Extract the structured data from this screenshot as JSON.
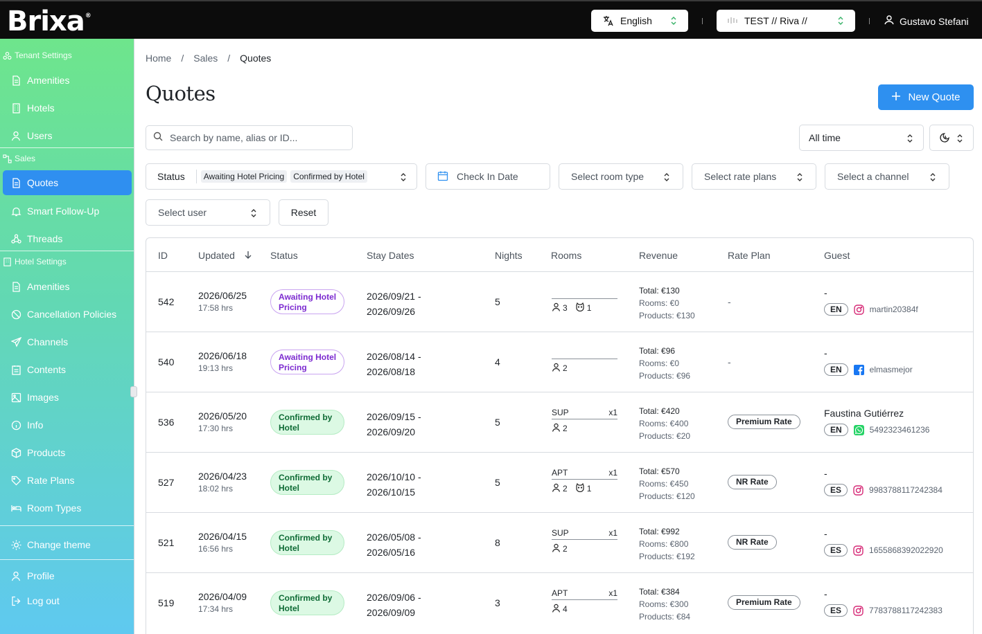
{
  "brand": {
    "logo": "Brixa",
    "reg": "®"
  },
  "topbar": {
    "language": "English",
    "tenant": "TEST // Riva //",
    "user": "Gustavo Stefani"
  },
  "sidebar": {
    "tenant_section": "Tenant Settings",
    "tenant_items": [
      "Amenities",
      "Hotels",
      "Users"
    ],
    "sales_section": "Sales",
    "sales_items": [
      "Quotes",
      "Smart Follow-Up",
      "Threads"
    ],
    "hotel_section": "Hotel Settings",
    "hotel_items": [
      "Amenities",
      "Cancellation Policies",
      "Channels",
      "Contents",
      "Images",
      "Info",
      "Products",
      "Rate Plans",
      "Room Types"
    ],
    "change_theme": "Change theme",
    "profile": "Profile",
    "logout": "Log out"
  },
  "breadcrumb": {
    "home": "Home",
    "sales": "Sales",
    "current": "Quotes",
    "sep": "/"
  },
  "page": {
    "title": "Quotes",
    "new_button": "New Quote"
  },
  "filters": {
    "search_placeholder": "Search by name, alias or ID...",
    "time": "All time",
    "status_label": "Status",
    "status_tags": [
      "Awaiting Hotel Pricing",
      "Confirmed by Hotel"
    ],
    "checkin": "Check In Date",
    "room_type": "Select room type",
    "rate_plans": "Select rate plans",
    "channel": "Select a channel",
    "user": "Select user",
    "reset": "Reset"
  },
  "table": {
    "headers": {
      "id": "ID",
      "updated": "Updated",
      "status": "Status",
      "stay": "Stay Dates",
      "nights": "Nights",
      "rooms": "Rooms",
      "revenue": "Revenue",
      "rate": "Rate Plan",
      "guest": "Guest"
    },
    "rows": [
      {
        "id": "542",
        "date": "2026/06/25",
        "time": "17:58 hrs",
        "status_l1": "Awaiting Hotel",
        "status_l2": "Pricing",
        "status_type": "awaiting",
        "stay1": "2026/09/21 -",
        "stay2": "2026/09/26",
        "nights": "5",
        "room_type": "",
        "room_qty": "",
        "adults": "3",
        "pets": "1",
        "total": "Total: €130",
        "rooms_rev": "Rooms: €0",
        "products_rev": "Products: €130",
        "rate": "-",
        "guest_name": "-",
        "lang": "EN",
        "channel": "instagram",
        "handle": "martin20384f"
      },
      {
        "id": "540",
        "date": "2026/06/18",
        "time": "19:13 hrs",
        "status_l1": "Awaiting Hotel",
        "status_l2": "Pricing",
        "status_type": "awaiting",
        "stay1": "2026/08/14 -",
        "stay2": "2026/08/18",
        "nights": "4",
        "room_type": "",
        "room_qty": "",
        "adults": "2",
        "pets": "",
        "total": "Total: €96",
        "rooms_rev": "Rooms: €0",
        "products_rev": "Products: €96",
        "rate": "-",
        "guest_name": "-",
        "lang": "EN",
        "channel": "facebook",
        "handle": "elmasmejor"
      },
      {
        "id": "536",
        "date": "2026/05/20",
        "time": "17:30 hrs",
        "status_l1": "Confirmed by",
        "status_l2": "Hotel",
        "status_type": "confirmed",
        "stay1": "2026/09/15 -",
        "stay2": "2026/09/20",
        "nights": "5",
        "room_type": "SUP",
        "room_qty": "x1",
        "adults": "2",
        "pets": "",
        "total": "Total: €420",
        "rooms_rev": "Rooms: €400",
        "products_rev": "Products: €20",
        "rate": "Premium Rate",
        "guest_name": "Faustina Gutiérrez",
        "lang": "EN",
        "channel": "whatsapp",
        "handle": "5492323461236"
      },
      {
        "id": "527",
        "date": "2026/04/23",
        "time": "18:02 hrs",
        "status_l1": "Confirmed by",
        "status_l2": "Hotel",
        "status_type": "confirmed",
        "stay1": "2026/10/10 -",
        "stay2": "2026/10/15",
        "nights": "5",
        "room_type": "APT",
        "room_qty": "x1",
        "adults": "2",
        "pets": "1",
        "total": "Total: €570",
        "rooms_rev": "Rooms: €450",
        "products_rev": "Products: €120",
        "rate": "NR Rate",
        "guest_name": "-",
        "lang": "ES",
        "channel": "instagram",
        "handle": "9983788117242384"
      },
      {
        "id": "521",
        "date": "2026/04/15",
        "time": "16:56 hrs",
        "status_l1": "Confirmed by",
        "status_l2": "Hotel",
        "status_type": "confirmed",
        "stay1": "2026/05/08 -",
        "stay2": "2026/05/16",
        "nights": "8",
        "room_type": "SUP",
        "room_qty": "x1",
        "adults": "2",
        "pets": "",
        "total": "Total: €992",
        "rooms_rev": "Rooms: €800",
        "products_rev": "Products: €192",
        "rate": "NR Rate",
        "guest_name": "-",
        "lang": "ES",
        "channel": "instagram",
        "handle": "1655868392022920"
      },
      {
        "id": "519",
        "date": "2026/04/09",
        "time": "17:34 hrs",
        "status_l1": "Confirmed by",
        "status_l2": "Hotel",
        "status_type": "confirmed",
        "stay1": "2026/09/06 -",
        "stay2": "2026/09/09",
        "nights": "3",
        "room_type": "APT",
        "room_qty": "x1",
        "adults": "4",
        "pets": "",
        "total": "Total: €384",
        "rooms_rev": "Rooms: €300",
        "products_rev": "Products: €84",
        "rate": "Premium Rate",
        "guest_name": "-",
        "lang": "ES",
        "channel": "instagram",
        "handle": "7783788117242383"
      }
    ]
  },
  "colors": {
    "accent": "#2e90f0",
    "topbar": "#0c0c0c",
    "awaiting": "#7c2bd0",
    "confirmed": "#0e6b35"
  }
}
